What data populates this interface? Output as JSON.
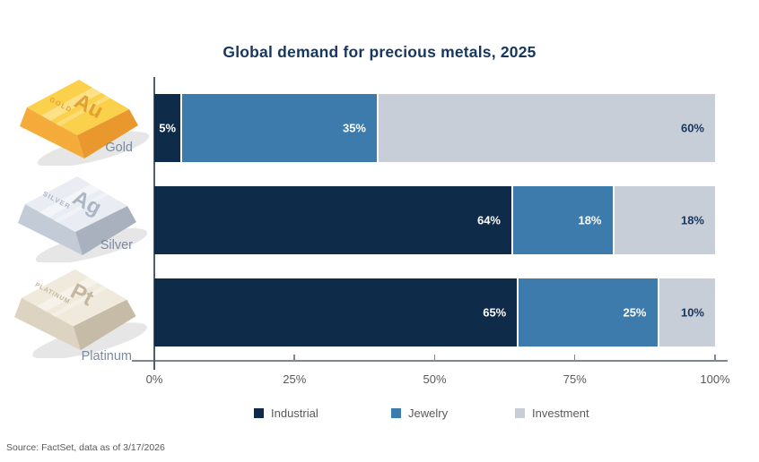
{
  "source": "Source: FactSet, data as of 3/17/2026",
  "ingots": [
    {
      "symbol": "Au",
      "caption": "GOLD"
    },
    {
      "symbol": "Ag",
      "caption": "SILVER"
    },
    {
      "symbol": "Pt",
      "caption": "PLATINUM"
    }
  ],
  "chart_data": {
    "type": "bar",
    "orientation": "horizontal",
    "stacked": true,
    "title": "Global demand for precious metals, 2025",
    "categories": [
      "Gold",
      "Silver",
      "Platinum"
    ],
    "series": [
      {
        "name": "Industrial",
        "color": "#0e2b4a",
        "label_color": "#ffffff",
        "values": [
          5,
          64,
          65
        ]
      },
      {
        "name": "Jewelry",
        "color": "#3d7bac",
        "label_color": "#ffffff",
        "values": [
          35,
          18,
          25
        ]
      },
      {
        "name": "Investment",
        "color": "#c8ced7",
        "label_color": "#17375e",
        "values": [
          60,
          18,
          10
        ]
      }
    ],
    "data_labels": [
      [
        "5%",
        "35%",
        "60%"
      ],
      [
        "64%",
        "18%",
        "18%"
      ],
      [
        "65%",
        "25%",
        "10%"
      ]
    ],
    "x_ticks": [
      "0%",
      "25%",
      "50%",
      "75%",
      "100%"
    ],
    "x_tick_values": [
      0,
      25,
      50,
      75,
      100
    ],
    "xlim": [
      0,
      100
    ],
    "grid": false,
    "legend_position": "bottom"
  }
}
